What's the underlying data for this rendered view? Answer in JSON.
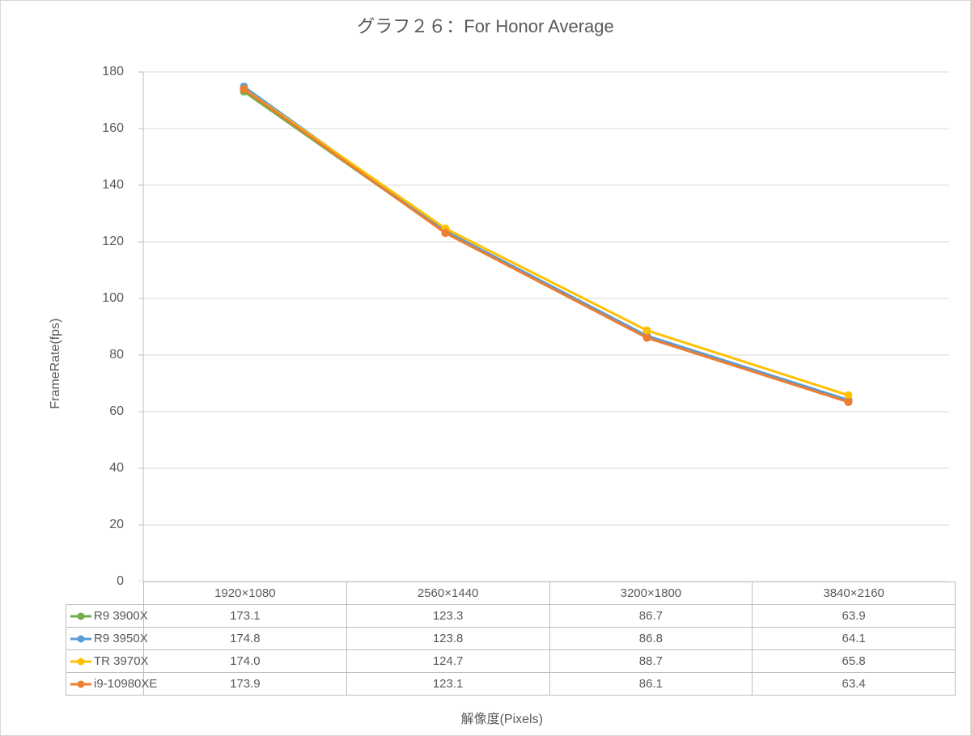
{
  "chart": {
    "type": "line",
    "title": "グラフ２６：For Honor Average",
    "title_fontsize": 22,
    "title_color": "#595959",
    "ylabel": "FrameRate(fps)",
    "xlabel": "解像度(Pixels)",
    "label_fontsize": 16,
    "label_color": "#595959",
    "background_color": "#ffffff",
    "border_color": "#d9d9d9",
    "grid_color": "#d9d9d9",
    "grid_on": true,
    "axis_line_color": "#bfbfbf",
    "tick_fontsize": 16,
    "tick_color": "#595959",
    "ylim": [
      0,
      180
    ],
    "ytick_step": 20,
    "yticks": [
      0,
      20,
      40,
      60,
      80,
      100,
      120,
      140,
      160,
      180
    ],
    "categories": [
      "1920×1080",
      "2560×1440",
      "3200×1800",
      "3840×2160"
    ],
    "line_width": 3,
    "marker_style": "circle",
    "marker_size": 5,
    "series": [
      {
        "name": "R9 3900X",
        "color": "#70ad47",
        "values": [
          173.1,
          123.3,
          86.7,
          63.9
        ]
      },
      {
        "name": "R9 3950X",
        "color": "#5b9bd5",
        "values": [
          174.8,
          123.8,
          86.8,
          64.1
        ]
      },
      {
        "name": "TR 3970X",
        "color": "#ffc000",
        "values": [
          174.0,
          124.7,
          88.7,
          65.8
        ]
      },
      {
        "name": "i9-10980XE",
        "color": "#ed7d31",
        "values": [
          173.9,
          123.1,
          86.1,
          63.4
        ]
      }
    ],
    "table_border_color": "#bfbfbf"
  }
}
